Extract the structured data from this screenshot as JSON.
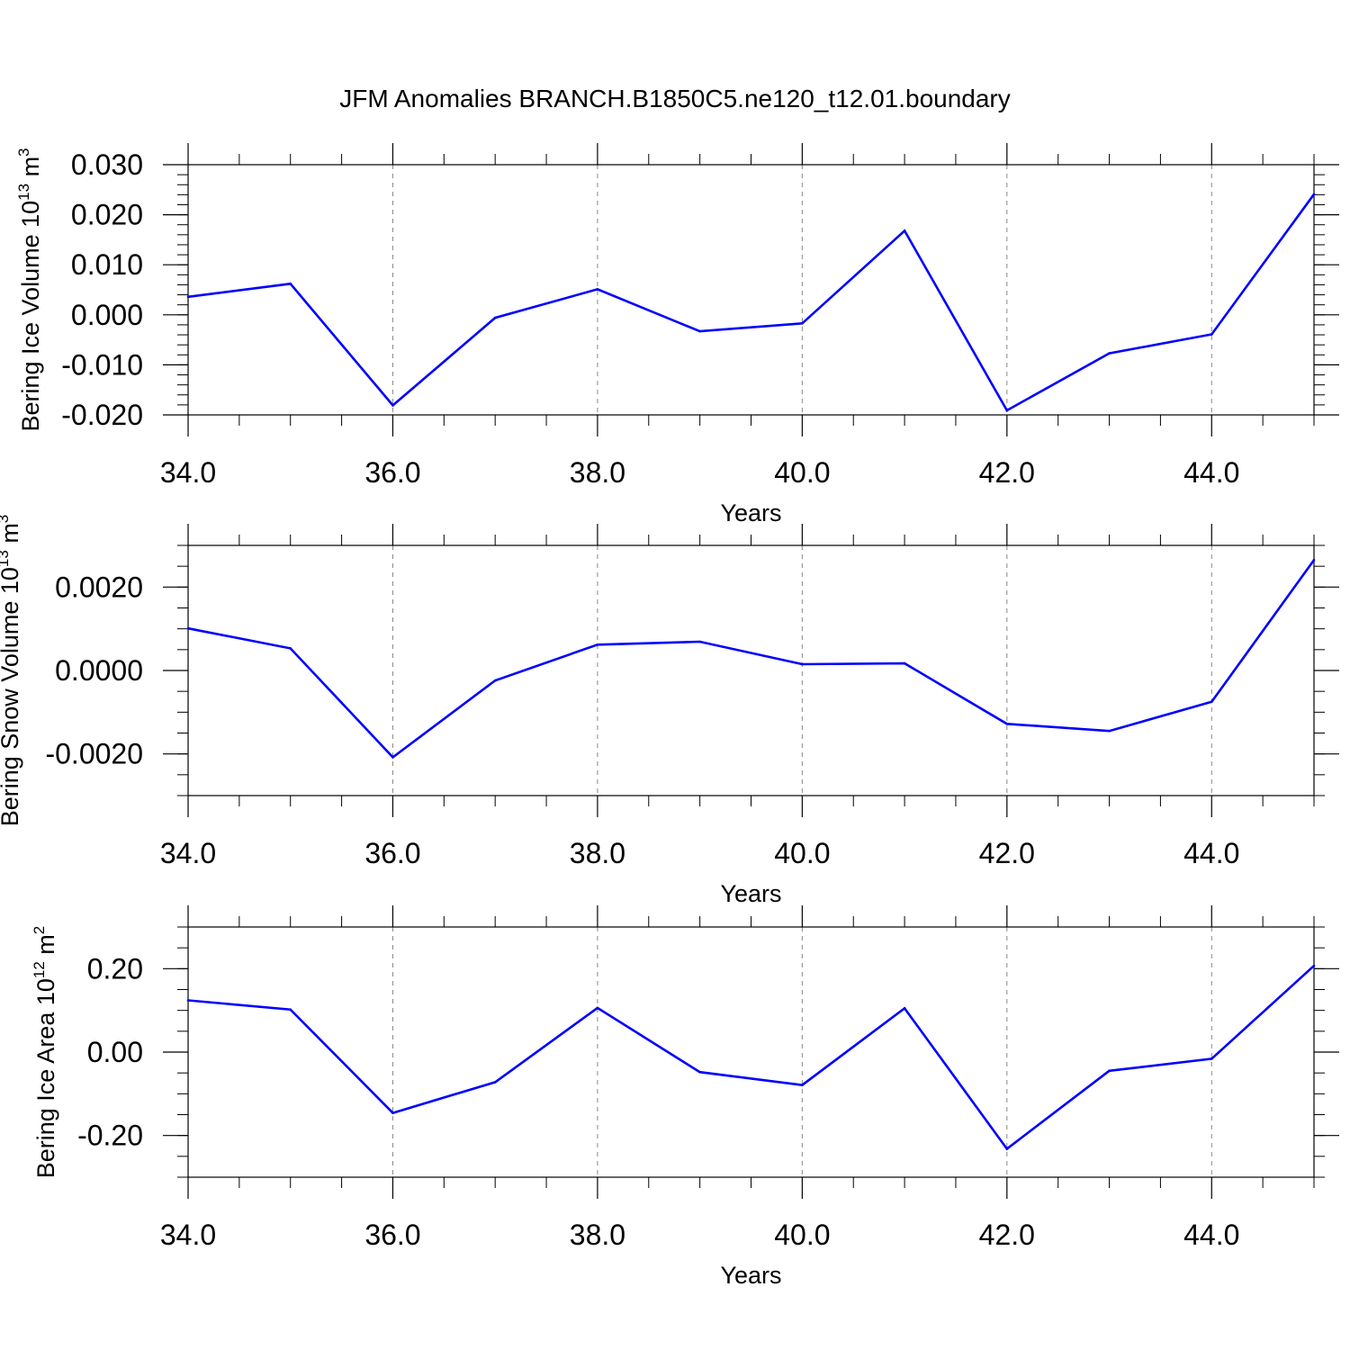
{
  "title": "JFM Anomalies BRANCH.B1850C5.ne120_t12.01.boundary",
  "chart_data": [
    {
      "type": "line",
      "ylabel": "Bering Ice Volume 10",
      "ylabel_exp": "13",
      "ylabel_unit": " m",
      "ylabel_unit_exp": "3",
      "xlabel": "Years",
      "xlim": [
        34,
        45
      ],
      "ylim": [
        -0.02,
        0.03
      ],
      "x_ticks": [
        34,
        36,
        38,
        40,
        42,
        44
      ],
      "x_tick_labels": [
        "34.0",
        "36.0",
        "38.0",
        "40.0",
        "42.0",
        "44.0"
      ],
      "y_ticks": [
        -0.02,
        -0.01,
        0.0,
        0.01,
        0.02,
        0.03
      ],
      "y_tick_labels": [
        "-0.020",
        "-0.010",
        "0.000",
        "0.010",
        "0.020",
        "0.030"
      ],
      "y_minor_step": 0.002,
      "grid": "dashed vertical at major x ticks",
      "line_color": "#0000ff",
      "x": [
        34,
        35,
        36,
        37,
        38,
        39,
        40,
        41,
        42,
        43,
        44,
        45
      ],
      "y": [
        0.0036,
        0.0062,
        -0.0181,
        -0.0006,
        0.0051,
        -0.0033,
        -0.0017,
        0.0168,
        -0.0191,
        -0.0077,
        -0.0039,
        0.0241
      ]
    },
    {
      "type": "line",
      "ylabel": "Bering Snow Volume 10",
      "ylabel_exp": "13",
      "ylabel_unit": " m",
      "ylabel_unit_exp": "3",
      "xlabel": "Years",
      "xlim": [
        34,
        45
      ],
      "ylim": [
        -0.003,
        0.003
      ],
      "x_ticks": [
        34,
        36,
        38,
        40,
        42,
        44
      ],
      "x_tick_labels": [
        "34.0",
        "36.0",
        "38.0",
        "40.0",
        "42.0",
        "44.0"
      ],
      "y_ticks": [
        -0.002,
        0.0,
        0.002
      ],
      "y_tick_labels": [
        "-0.0020",
        "0.0000",
        "0.0020"
      ],
      "y_minor_step": 0.0005,
      "grid": "dashed vertical at major x ticks",
      "line_color": "#0000ff",
      "x": [
        34,
        35,
        36,
        37,
        38,
        39,
        40,
        41,
        42,
        43,
        44,
        45
      ],
      "y": [
        0.00101,
        0.00053,
        -0.00208,
        -0.00024,
        0.00062,
        0.00069,
        0.00015,
        0.00017,
        -0.00128,
        -0.00145,
        -0.00075,
        0.00265
      ]
    },
    {
      "type": "line",
      "ylabel": "Bering Ice Area 10",
      "ylabel_exp": "12",
      "ylabel_unit": " m",
      "ylabel_unit_exp": "2",
      "xlabel": "Years",
      "xlim": [
        34,
        45
      ],
      "ylim": [
        -0.3,
        0.3
      ],
      "x_ticks": [
        34,
        36,
        38,
        40,
        42,
        44
      ],
      "x_tick_labels": [
        "34.0",
        "36.0",
        "38.0",
        "40.0",
        "42.0",
        "44.0"
      ],
      "y_ticks": [
        -0.2,
        0.0,
        0.2
      ],
      "y_tick_labels": [
        "-0.20",
        "0.00",
        "0.20"
      ],
      "y_minor_step": 0.05,
      "grid": "dashed vertical at major x ticks",
      "line_color": "#0000ff",
      "x": [
        34,
        35,
        36,
        37,
        38,
        39,
        40,
        41,
        42,
        43,
        44,
        45
      ],
      "y": [
        0.124,
        0.102,
        -0.146,
        -0.072,
        0.106,
        -0.048,
        -0.079,
        0.105,
        -0.232,
        -0.045,
        -0.016,
        0.207
      ]
    }
  ]
}
